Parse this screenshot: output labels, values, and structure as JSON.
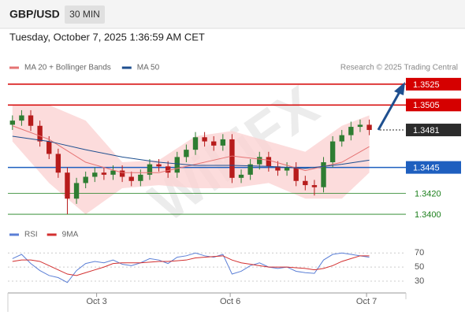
{
  "header": {
    "symbol": "GBP/USD",
    "timeframe": "30 MIN",
    "timestamp": "Tuesday, October 7, 2025 1:36:59 AM CET"
  },
  "chart_data": [
    {
      "type": "candlestick",
      "credit": "Research © 2025 Trading Central",
      "watermark": "WikiFX",
      "up_color": "#2e7d32",
      "down_color": "#b71c1c",
      "xlim": [
        -0.5,
        43
      ],
      "ylim": [
        1.3394,
        1.3534
      ],
      "open": [
        1.3486,
        1.349,
        1.3495,
        1.3485,
        1.347,
        1.3458,
        1.344,
        1.3415,
        1.343,
        1.3436,
        1.344,
        1.3438,
        1.3442,
        1.3436,
        1.3432,
        1.3438,
        1.3448,
        1.3446,
        1.344,
        1.3455,
        1.3462,
        1.3474,
        1.347,
        1.3466,
        1.3472,
        1.3435,
        1.3438,
        1.3448,
        1.3455,
        1.3446,
        1.3442,
        1.3445,
        1.3432,
        1.3428,
        1.3426,
        1.345,
        1.347,
        1.3476,
        1.3484,
        1.3486
      ],
      "high": [
        1.3495,
        1.35,
        1.35,
        1.349,
        1.3475,
        1.3463,
        1.3445,
        1.3435,
        1.3441,
        1.3445,
        1.3445,
        1.3447,
        1.3447,
        1.3441,
        1.3443,
        1.3453,
        1.3453,
        1.3451,
        1.346,
        1.3467,
        1.3479,
        1.3479,
        1.3475,
        1.3477,
        1.3477,
        1.3443,
        1.3453,
        1.346,
        1.346,
        1.3451,
        1.345,
        1.345,
        1.3437,
        1.3433,
        1.3455,
        1.3475,
        1.3481,
        1.3489,
        1.3491,
        1.3491
      ],
      "low": [
        1.3481,
        1.3485,
        1.348,
        1.3465,
        1.3453,
        1.3435,
        1.34,
        1.341,
        1.3425,
        1.3431,
        1.3433,
        1.3433,
        1.3431,
        1.3427,
        1.3427,
        1.3433,
        1.3441,
        1.3435,
        1.3435,
        1.345,
        1.3457,
        1.3465,
        1.3461,
        1.3461,
        1.343,
        1.343,
        1.3433,
        1.3443,
        1.3441,
        1.3437,
        1.3437,
        1.3427,
        1.3423,
        1.3418,
        1.3421,
        1.3445,
        1.3465,
        1.3471,
        1.3479,
        1.3476
      ],
      "close": [
        1.349,
        1.3495,
        1.3485,
        1.347,
        1.3458,
        1.344,
        1.3415,
        1.343,
        1.3436,
        1.344,
        1.3438,
        1.3442,
        1.3436,
        1.3432,
        1.3438,
        1.3448,
        1.3446,
        1.344,
        1.3455,
        1.3462,
        1.3474,
        1.347,
        1.3466,
        1.3472,
        1.3435,
        1.3438,
        1.3448,
        1.3455,
        1.3446,
        1.3442,
        1.3445,
        1.3432,
        1.3428,
        1.3426,
        1.345,
        1.347,
        1.3476,
        1.3484,
        1.3486,
        1.3481
      ],
      "indicator_x": [
        0,
        4,
        8,
        12,
        16,
        20,
        24,
        28,
        32,
        36,
        39
      ],
      "series": [
        {
          "name": "MA 20 + Bollinger Bands",
          "color": "#e57373",
          "values": [
            1.3485,
            1.3472,
            1.345,
            1.344,
            1.344,
            1.3448,
            1.3456,
            1.3452,
            1.3442,
            1.345,
            1.3465
          ]
        },
        {
          "name": "MA 50",
          "color": "#1e4f8f",
          "values": [
            1.3475,
            1.347,
            1.3462,
            1.3455,
            1.345,
            1.3447,
            1.3447,
            1.3446,
            1.3444,
            1.3448,
            1.3452
          ]
        }
      ],
      "band": {
        "color": "#fbd3d3",
        "upper": [
          1.3505,
          1.3505,
          1.349,
          1.345,
          1.3452,
          1.3475,
          1.348,
          1.347,
          1.346,
          1.3485,
          1.3495
        ],
        "lower": [
          1.347,
          1.343,
          1.34,
          1.3425,
          1.3428,
          1.3425,
          1.3425,
          1.343,
          1.3415,
          1.3415,
          1.344
        ]
      },
      "levels": [
        {
          "value": 1.3525,
          "color": "#d50000",
          "line": "full",
          "box": true
        },
        {
          "value": 1.3505,
          "color": "#d50000",
          "line": "full",
          "box": true
        },
        {
          "value": 1.3481,
          "color": "#2b2b2b",
          "line": "dotted",
          "box": true
        },
        {
          "value": 1.3445,
          "color": "#1e5fbf",
          "line": "full",
          "box": true
        },
        {
          "value": 1.342,
          "label": "1.3420",
          "color": "#1b7f1b",
          "line": "full",
          "box": false
        },
        {
          "value": 1.34,
          "label": "1.3400",
          "color": "#1b7f1b",
          "line": "full",
          "box": false
        }
      ]
    },
    {
      "type": "line",
      "xlim": [
        -0.5,
        43
      ],
      "ylim": [
        21,
        77
      ],
      "yticks": [
        30,
        50,
        70
      ],
      "xticks": [
        {
          "value": 9.2,
          "label": "Oct 3"
        },
        {
          "value": 23.8,
          "label": "Oct 6"
        },
        {
          "value": 38.7,
          "label": "Oct 7"
        }
      ],
      "series": [
        {
          "name": "RSI",
          "color": "#5b7fd6",
          "values": [
            62,
            68,
            55,
            45,
            38,
            35,
            28,
            45,
            55,
            58,
            56,
            60,
            54,
            52,
            56,
            62,
            60,
            55,
            64,
            66,
            70,
            66,
            64,
            68,
            40,
            44,
            52,
            56,
            50,
            48,
            50,
            44,
            42,
            41,
            60,
            68,
            70,
            68,
            66,
            64
          ]
        },
        {
          "name": "9MA",
          "color": "#d32f2f",
          "values": [
            58,
            60,
            60,
            58,
            52,
            46,
            40,
            38,
            42,
            46,
            50,
            55,
            56,
            56,
            56,
            57,
            58,
            58,
            59,
            60,
            63,
            64,
            65,
            66,
            60,
            56,
            54,
            52,
            50,
            50,
            50,
            49,
            48,
            46,
            48,
            52,
            58,
            62,
            66,
            66
          ]
        }
      ]
    }
  ]
}
